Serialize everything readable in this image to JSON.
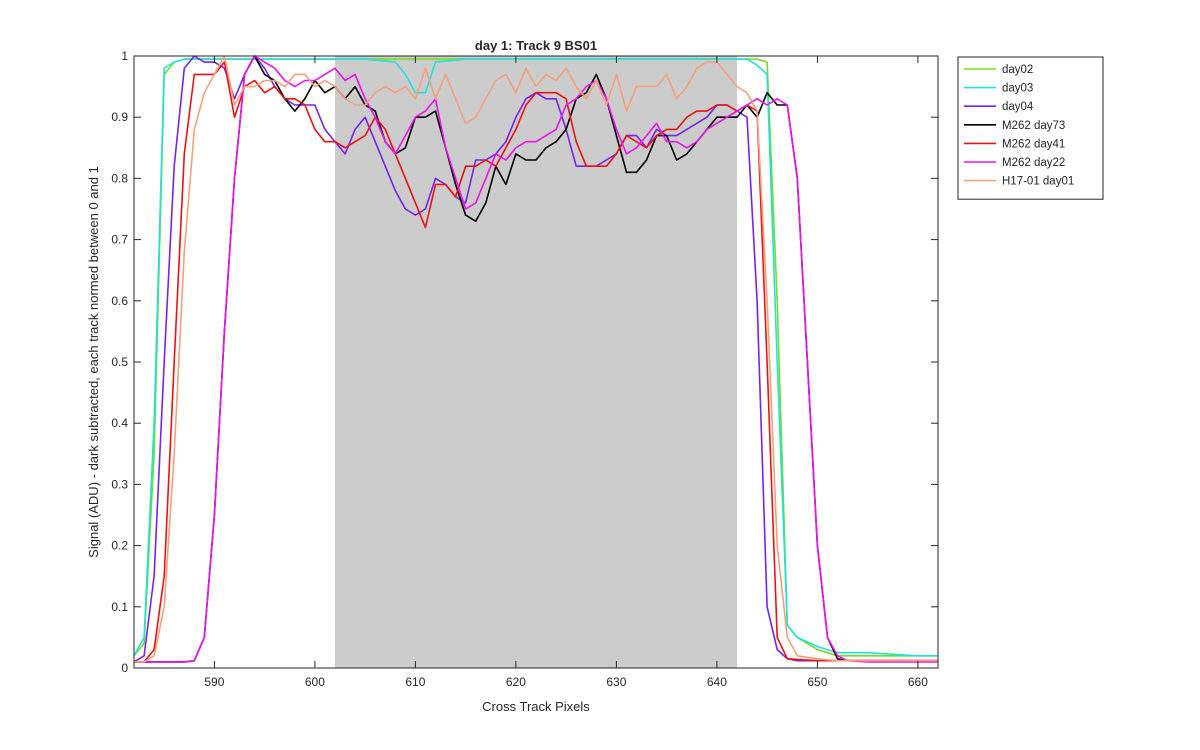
{
  "chart_data": {
    "type": "line",
    "title": "day 1: Track 9  BS01",
    "xlabel": "Cross Track Pixels",
    "ylabel": "Signal (ADU) - dark subtracted, each track normed between 0 and 1",
    "xlim": [
      582,
      662
    ],
    "ylim": [
      0,
      1
    ],
    "xticks": [
      590,
      600,
      610,
      620,
      630,
      640,
      650,
      660
    ],
    "yticks": [
      0,
      0.1,
      0.2,
      0.3,
      0.4,
      0.5,
      0.6,
      0.7,
      0.8,
      0.9,
      1
    ],
    "grid": false,
    "legend_position": "outside-top-right",
    "shaded_region": {
      "x0": 602,
      "x1": 642,
      "color": "#cccccc"
    },
    "series": [
      {
        "name": "day02",
        "color": "#77dd22",
        "x": [
          582,
          583,
          584,
          585,
          586,
          587,
          588,
          590,
          592,
          594,
          600,
          605,
          610,
          615,
          620,
          625,
          630,
          635,
          640,
          644,
          645,
          646,
          647,
          648,
          650,
          652,
          655,
          660,
          662
        ],
        "y": [
          0.02,
          0.04,
          0.35,
          0.97,
          0.99,
          0.995,
          0.995,
          0.995,
          0.995,
          0.995,
          0.995,
          0.995,
          0.995,
          0.995,
          0.995,
          0.995,
          0.995,
          0.995,
          0.995,
          0.995,
          0.99,
          0.6,
          0.07,
          0.05,
          0.03,
          0.02,
          0.02,
          0.02,
          0.02
        ]
      },
      {
        "name": "day03",
        "color": "#22e0e0",
        "x": [
          582,
          583,
          584,
          585,
          586,
          587,
          588,
          590,
          592,
          594,
          600,
          605,
          608,
          609,
          610,
          611,
          612,
          615,
          620,
          625,
          630,
          635,
          640,
          643,
          644,
          645,
          646,
          647,
          648,
          650,
          652,
          655,
          660,
          662
        ],
        "y": [
          0.02,
          0.05,
          0.4,
          0.98,
          0.99,
          0.995,
          0.995,
          0.995,
          0.995,
          0.995,
          0.995,
          0.995,
          0.99,
          0.97,
          0.94,
          0.94,
          0.99,
          0.995,
          0.995,
          0.995,
          0.995,
          0.995,
          0.995,
          0.995,
          0.985,
          0.97,
          0.5,
          0.07,
          0.05,
          0.035,
          0.025,
          0.025,
          0.02,
          0.02
        ]
      },
      {
        "name": "day04",
        "color": "#7722ee",
        "x": [
          582,
          583,
          584,
          585,
          586,
          587,
          588,
          589,
          590,
          591,
          592,
          593,
          594,
          595,
          596,
          597,
          598,
          599,
          600,
          601,
          602,
          603,
          604,
          605,
          606,
          607,
          608,
          609,
          610,
          611,
          612,
          613,
          614,
          615,
          616,
          617,
          618,
          619,
          620,
          621,
          622,
          623,
          624,
          625,
          626,
          627,
          628,
          629,
          630,
          631,
          632,
          633,
          634,
          635,
          636,
          637,
          638,
          639,
          640,
          641,
          642,
          643,
          644,
          645,
          646,
          647,
          648,
          649,
          650,
          652,
          655,
          660,
          662
        ],
        "y": [
          0.01,
          0.02,
          0.15,
          0.5,
          0.82,
          0.98,
          1.0,
          0.99,
          0.99,
          0.98,
          0.93,
          0.97,
          1.0,
          0.98,
          0.95,
          0.93,
          0.92,
          0.92,
          0.92,
          0.88,
          0.86,
          0.84,
          0.88,
          0.9,
          0.86,
          0.82,
          0.78,
          0.75,
          0.74,
          0.75,
          0.8,
          0.79,
          0.77,
          0.76,
          0.83,
          0.83,
          0.84,
          0.86,
          0.9,
          0.93,
          0.94,
          0.93,
          0.93,
          0.88,
          0.82,
          0.82,
          0.82,
          0.83,
          0.84,
          0.87,
          0.87,
          0.85,
          0.88,
          0.87,
          0.87,
          0.88,
          0.89,
          0.9,
          0.92,
          0.92,
          0.91,
          0.9,
          0.6,
          0.1,
          0.03,
          0.015,
          0.012,
          0.012,
          0.012,
          0.012,
          0.012,
          0.012,
          0.012
        ]
      },
      {
        "name": "M262 day73",
        "color": "#000000",
        "x": [
          582,
          583,
          584,
          585,
          586,
          587,
          588,
          589,
          590,
          591,
          592,
          593,
          594,
          595,
          596,
          597,
          598,
          599,
          600,
          601,
          602,
          603,
          604,
          605,
          606,
          607,
          608,
          609,
          610,
          611,
          612,
          613,
          614,
          615,
          616,
          617,
          618,
          619,
          620,
          621,
          622,
          623,
          624,
          625,
          626,
          627,
          628,
          629,
          630,
          631,
          632,
          633,
          634,
          635,
          636,
          637,
          638,
          639,
          640,
          641,
          642,
          643,
          644,
          645,
          646,
          647,
          648,
          649,
          650,
          651,
          652,
          653,
          655,
          660,
          662
        ],
        "y": [
          0.01,
          0.01,
          0.01,
          0.01,
          0.01,
          0.01,
          0.012,
          0.05,
          0.25,
          0.55,
          0.8,
          0.97,
          1.0,
          0.97,
          0.96,
          0.93,
          0.91,
          0.93,
          0.96,
          0.94,
          0.95,
          0.93,
          0.95,
          0.92,
          0.91,
          0.86,
          0.84,
          0.85,
          0.9,
          0.9,
          0.91,
          0.85,
          0.79,
          0.74,
          0.73,
          0.76,
          0.82,
          0.79,
          0.84,
          0.83,
          0.83,
          0.85,
          0.86,
          0.88,
          0.93,
          0.94,
          0.97,
          0.93,
          0.87,
          0.81,
          0.81,
          0.83,
          0.87,
          0.87,
          0.83,
          0.84,
          0.86,
          0.88,
          0.9,
          0.9,
          0.9,
          0.92,
          0.9,
          0.94,
          0.92,
          0.92,
          0.8,
          0.5,
          0.2,
          0.05,
          0.015,
          0.012,
          0.012,
          0.012,
          0.012
        ]
      },
      {
        "name": "M262 day41",
        "color": "#ee1111",
        "x": [
          582,
          583,
          584,
          585,
          586,
          587,
          588,
          589,
          590,
          591,
          592,
          593,
          594,
          595,
          596,
          597,
          598,
          599,
          600,
          601,
          602,
          603,
          604,
          605,
          606,
          607,
          608,
          609,
          610,
          611,
          612,
          613,
          614,
          615,
          616,
          617,
          618,
          619,
          620,
          621,
          622,
          623,
          624,
          625,
          626,
          627,
          628,
          629,
          630,
          631,
          632,
          633,
          634,
          635,
          636,
          637,
          638,
          639,
          640,
          641,
          642,
          643,
          644,
          645,
          646,
          647,
          650,
          655,
          660,
          662
        ],
        "y": [
          0.01,
          0.01,
          0.03,
          0.15,
          0.5,
          0.84,
          0.97,
          0.97,
          0.97,
          0.99,
          0.9,
          0.95,
          0.96,
          0.94,
          0.95,
          0.93,
          0.93,
          0.92,
          0.88,
          0.86,
          0.86,
          0.85,
          0.86,
          0.87,
          0.9,
          0.88,
          0.84,
          0.8,
          0.76,
          0.72,
          0.79,
          0.79,
          0.77,
          0.82,
          0.82,
          0.83,
          0.82,
          0.85,
          0.88,
          0.92,
          0.94,
          0.94,
          0.94,
          0.93,
          0.86,
          0.82,
          0.82,
          0.82,
          0.84,
          0.87,
          0.86,
          0.85,
          0.87,
          0.88,
          0.88,
          0.9,
          0.91,
          0.91,
          0.92,
          0.92,
          0.91,
          0.92,
          0.91,
          0.5,
          0.05,
          0.015,
          0.012,
          0.012,
          0.012,
          0.012
        ]
      },
      {
        "name": "M262 day22",
        "color": "#ee11ee",
        "x": [
          582,
          583,
          584,
          585,
          586,
          587,
          588,
          589,
          590,
          591,
          592,
          593,
          594,
          595,
          596,
          597,
          598,
          599,
          600,
          601,
          602,
          603,
          604,
          605,
          606,
          607,
          608,
          609,
          610,
          611,
          612,
          613,
          614,
          615,
          616,
          617,
          618,
          619,
          620,
          621,
          622,
          623,
          624,
          625,
          626,
          627,
          628,
          629,
          630,
          631,
          632,
          633,
          634,
          635,
          636,
          637,
          638,
          639,
          640,
          641,
          642,
          643,
          644,
          645,
          646,
          647,
          648,
          649,
          650,
          651,
          652,
          653,
          655,
          660,
          662
        ],
        "y": [
          0.01,
          0.01,
          0.01,
          0.01,
          0.01,
          0.01,
          0.012,
          0.05,
          0.25,
          0.55,
          0.8,
          0.97,
          1.0,
          0.99,
          0.98,
          0.96,
          0.95,
          0.96,
          0.96,
          0.97,
          0.98,
          0.96,
          0.97,
          0.93,
          0.9,
          0.86,
          0.84,
          0.87,
          0.9,
          0.91,
          0.93,
          0.85,
          0.8,
          0.75,
          0.76,
          0.8,
          0.84,
          0.83,
          0.85,
          0.86,
          0.86,
          0.87,
          0.88,
          0.92,
          0.93,
          0.95,
          0.96,
          0.93,
          0.88,
          0.84,
          0.85,
          0.87,
          0.89,
          0.86,
          0.86,
          0.85,
          0.86,
          0.88,
          0.89,
          0.9,
          0.91,
          0.92,
          0.93,
          0.92,
          0.93,
          0.92,
          0.8,
          0.5,
          0.2,
          0.05,
          0.02,
          0.012,
          0.01,
          0.01,
          0.01
        ]
      },
      {
        "name": "H17-01 day01",
        "color": "#f4a07a",
        "x": [
          582,
          583,
          584,
          585,
          586,
          587,
          588,
          589,
          590,
          591,
          592,
          593,
          594,
          595,
          596,
          597,
          598,
          599,
          600,
          601,
          602,
          603,
          604,
          605,
          606,
          607,
          608,
          609,
          610,
          611,
          612,
          613,
          614,
          615,
          616,
          617,
          618,
          619,
          620,
          621,
          622,
          623,
          624,
          625,
          626,
          627,
          628,
          629,
          630,
          631,
          632,
          633,
          634,
          635,
          636,
          637,
          638,
          639,
          640,
          641,
          642,
          643,
          644,
          645,
          646,
          647,
          648,
          650,
          652,
          655,
          660,
          662
        ],
        "y": [
          0.01,
          0.01,
          0.02,
          0.1,
          0.35,
          0.68,
          0.88,
          0.94,
          0.97,
          1.0,
          0.92,
          0.95,
          0.95,
          0.96,
          0.96,
          0.95,
          0.97,
          0.97,
          0.95,
          0.96,
          0.95,
          0.93,
          0.92,
          0.92,
          0.94,
          0.95,
          0.94,
          0.95,
          0.93,
          0.98,
          0.93,
          0.97,
          0.93,
          0.89,
          0.9,
          0.93,
          0.96,
          0.97,
          0.94,
          0.98,
          0.95,
          0.97,
          0.96,
          0.98,
          0.95,
          0.93,
          0.96,
          0.92,
          0.97,
          0.91,
          0.95,
          0.95,
          0.95,
          0.97,
          0.93,
          0.95,
          0.98,
          0.99,
          0.99,
          0.97,
          0.95,
          0.94,
          0.91,
          0.6,
          0.2,
          0.05,
          0.02,
          0.015,
          0.012,
          0.012,
          0.012,
          0.012
        ]
      }
    ]
  }
}
